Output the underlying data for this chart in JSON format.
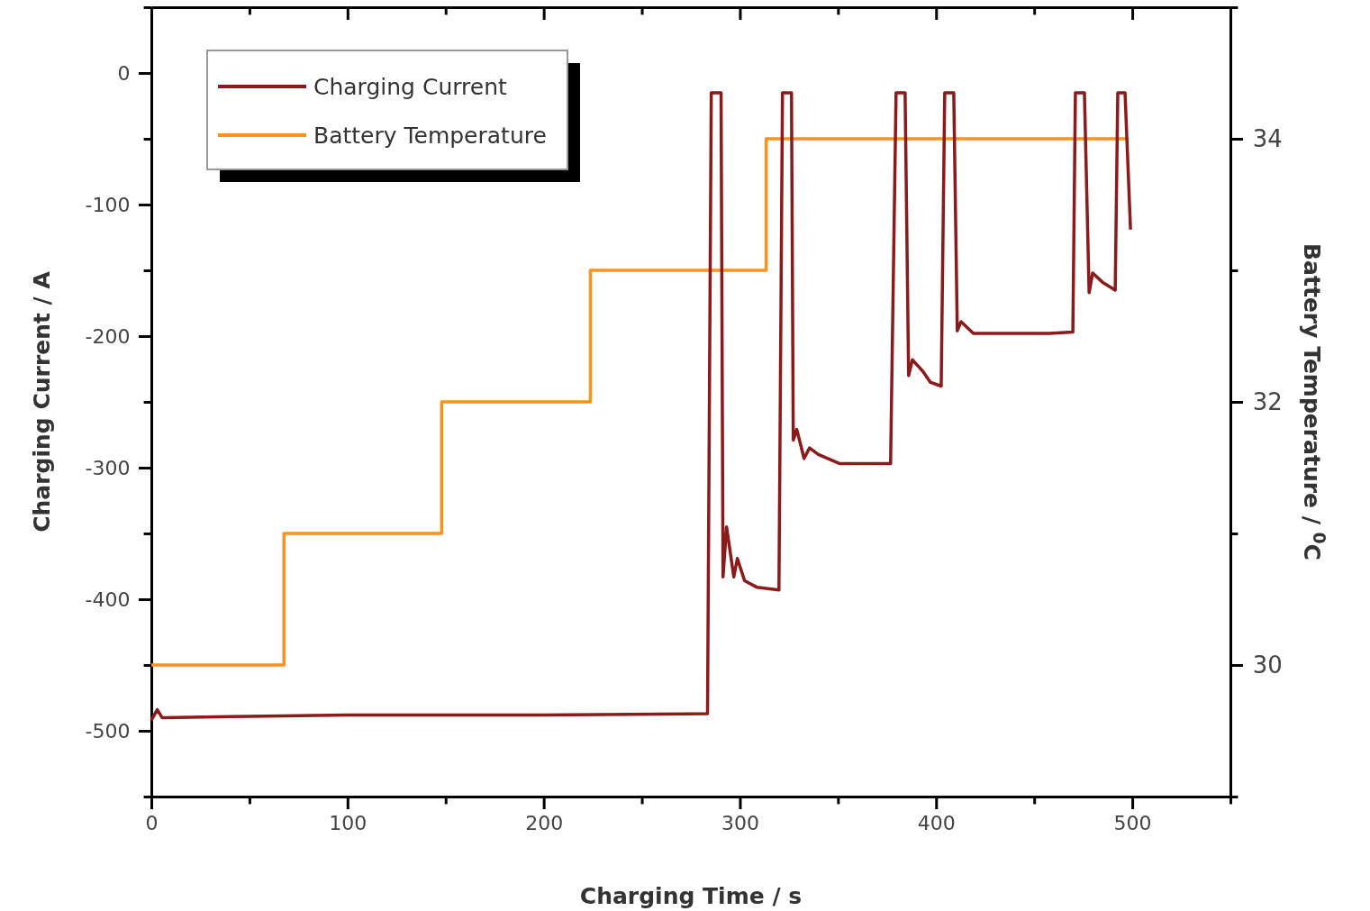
{
  "chart_data": {
    "type": "line",
    "xlabel": "Charging Time / s",
    "ylabel": "Charging Current / A",
    "y2label": "Battery Temperature / $^{0}$C",
    "xlim": [
      0,
      550
    ],
    "xticks": [
      0,
      {
        "value": 50,
        "label": null
      },
      100,
      {
        "value": 150,
        "label": null
      },
      200,
      {
        "value": 250,
        "label": null
      },
      300,
      {
        "value": 350,
        "label": null
      },
      400,
      {
        "value": 450,
        "label": null
      },
      500,
      {
        "value": 550,
        "label": null
      }
    ],
    "ylim": [
      -550,
      50
    ],
    "yticks": [
      {
        "value": -550,
        "label": null
      },
      -500,
      {
        "value": -450,
        "label": null
      },
      -400,
      {
        "value": -350,
        "label": null
      },
      -300,
      {
        "value": -250,
        "label": null
      },
      -200,
      {
        "value": -150,
        "label": null
      },
      -100,
      {
        "value": -50,
        "label": null
      },
      0,
      {
        "value": 50,
        "label": null
      }
    ],
    "y2lim": [
      29,
      35
    ],
    "y2ticks": [
      {
        "value": 29,
        "label": null
      },
      30,
      {
        "value": 31,
        "label": null
      },
      32,
      {
        "value": 33,
        "label": null
      },
      34,
      {
        "value": 35,
        "label": null
      }
    ],
    "legend": "top left",
    "grid": false,
    "series": [
      {
        "name": "Charging Current",
        "color": "#8b1a1a",
        "x": [
          0,
          3,
          5.5,
          50,
          100,
          200,
          283.5,
          285.4,
          290.4,
          291.4,
          293.2,
          296.9,
          298.7,
          302.4,
          308.8,
          319.9,
          321.7,
          326.3,
          327.2,
          329,
          332.7,
          335.5,
          340,
          351,
          376.8,
          379.6,
          384.2,
          386,
          387.9,
          393.4,
          397,
          402.6,
          404.4,
          409,
          410.8,
          412.7,
          419,
          457.7,
          469.7,
          471,
          475.6,
          478,
          479.8,
          484.8,
          491.3,
          492.6,
          496.3,
          499.1
        ],
        "values": [
          -492,
          -484,
          -490,
          -489,
          -488,
          -488,
          -487,
          -15,
          -15,
          -383,
          -345,
          -383,
          -369,
          -386,
          -391,
          -393,
          -15,
          -15,
          -279,
          -271,
          -293,
          -285,
          -290,
          -297,
          -297,
          -15,
          -15,
          -230,
          -218,
          -227,
          -235,
          -238,
          -15,
          -15,
          -196,
          -189,
          -198,
          -198,
          -197,
          -15,
          -15,
          -167,
          -152,
          -159,
          -165,
          -15,
          -15,
          -119
        ]
      },
      {
        "name": "Battery Temperature",
        "color": "#f7931e",
        "axis": "y2",
        "x": [
          0,
          67.6,
          67.6,
          148,
          148,
          223.8,
          223.8,
          313.4,
          313.4,
          498
        ],
        "values": [
          30,
          30,
          31,
          31,
          32,
          32,
          33,
          33,
          34,
          34
        ]
      }
    ]
  }
}
